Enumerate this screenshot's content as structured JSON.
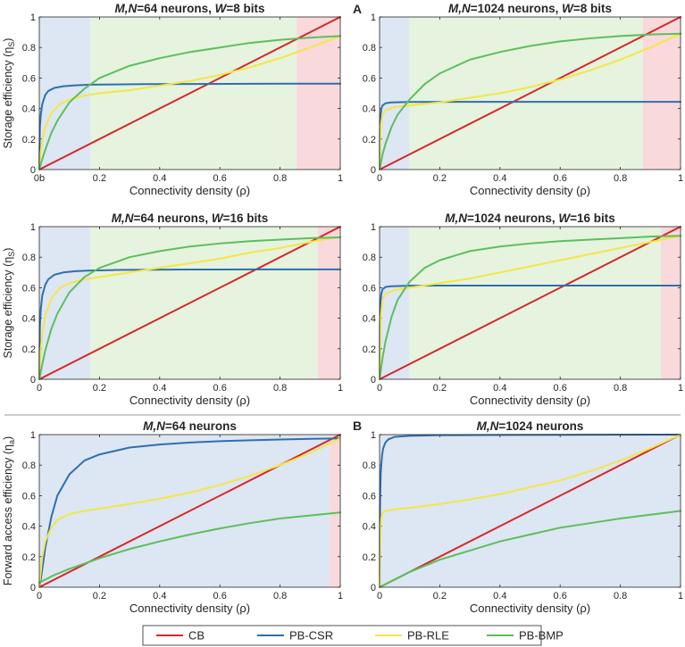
{
  "letters": {
    "A": "A",
    "B": "B"
  },
  "legend": [
    {
      "name": "CB",
      "color": "#d62728"
    },
    {
      "name": "PB-CSR",
      "color": "#2e6fb0"
    },
    {
      "name": "PB-RLE",
      "color": "#f5e642"
    },
    {
      "name": "PB-BMP",
      "color": "#5cbf5c"
    }
  ],
  "region_colors": {
    "blue": "#dde6f3",
    "green": "#e6f3de",
    "red": "#f9d9dc"
  },
  "chart_data": [
    {
      "type": "line",
      "title": {
        "pre": "M,N",
        "mid": "=64 neurons, ",
        "wvar": "W",
        "post": "=8 bits"
      },
      "xlabel": "Connectivity density (ρ)",
      "ylabel": {
        "text": "Storage efficiency (η",
        "sub": "S",
        "close": ")"
      },
      "xlim": [
        0,
        1
      ],
      "ylim": [
        0,
        1
      ],
      "xticks": [
        "0b",
        "0.2",
        "0.4",
        "0.6",
        "0.8",
        "1"
      ],
      "yticks": [
        "0",
        "0.2",
        "0.4",
        "0.6",
        "0.8",
        "1"
      ],
      "regions": [
        {
          "from": 0,
          "to": 0.17,
          "color": "blue"
        },
        {
          "from": 0.17,
          "to": 0.855,
          "color": "green"
        },
        {
          "from": 0.855,
          "to": 1,
          "color": "red"
        }
      ],
      "series": [
        {
          "name": "CB",
          "x": [
            0,
            1
          ],
          "values": [
            0,
            1
          ]
        },
        {
          "name": "PB-CSR",
          "x": [
            0,
            0.002,
            0.005,
            0.01,
            0.02,
            0.03,
            0.05,
            0.08,
            0.12,
            0.17,
            0.25,
            0.35,
            0.5,
            0.7,
            0.85,
            1
          ],
          "values": [
            0,
            0.28,
            0.36,
            0.43,
            0.49,
            0.515,
            0.535,
            0.546,
            0.552,
            0.556,
            0.558,
            0.56,
            0.561,
            0.562,
            0.563,
            0.563
          ]
        },
        {
          "name": "PB-RLE",
          "x": [
            0,
            0.005,
            0.01,
            0.02,
            0.04,
            0.07,
            0.1,
            0.15,
            0.2,
            0.3,
            0.4,
            0.5,
            0.6,
            0.7,
            0.8,
            0.9,
            1
          ],
          "values": [
            0,
            0.12,
            0.19,
            0.28,
            0.37,
            0.43,
            0.46,
            0.485,
            0.5,
            0.52,
            0.55,
            0.58,
            0.62,
            0.67,
            0.73,
            0.8,
            0.875
          ]
        },
        {
          "name": "PB-BMP",
          "x": [
            0,
            0.01,
            0.02,
            0.04,
            0.06,
            0.1,
            0.15,
            0.2,
            0.3,
            0.4,
            0.5,
            0.6,
            0.7,
            0.8,
            0.9,
            1
          ],
          "values": [
            0,
            0.07,
            0.13,
            0.24,
            0.32,
            0.44,
            0.53,
            0.6,
            0.68,
            0.73,
            0.77,
            0.8,
            0.83,
            0.85,
            0.865,
            0.875
          ]
        }
      ]
    },
    {
      "type": "line",
      "title": {
        "pre": "M,N",
        "mid": "=1024 neurons, ",
        "wvar": "W",
        "post": "=8 bits"
      },
      "xlabel": "Connectivity density (ρ)",
      "ylabel": null,
      "xlim": [
        0,
        1
      ],
      "ylim": [
        0,
        1
      ],
      "xticks": [
        "0",
        "0.2",
        "0.4",
        "0.6",
        "0.8",
        "1"
      ],
      "yticks": [
        "0",
        "0.2",
        "0.4",
        "0.6",
        "0.8",
        "1"
      ],
      "regions": [
        {
          "from": 0,
          "to": 0.1,
          "color": "blue"
        },
        {
          "from": 0.1,
          "to": 0.875,
          "color": "green"
        },
        {
          "from": 0.875,
          "to": 1,
          "color": "red"
        }
      ],
      "series": [
        {
          "name": "CB",
          "x": [
            0,
            1
          ],
          "values": [
            0,
            1
          ]
        },
        {
          "name": "PB-CSR",
          "x": [
            0,
            0.001,
            0.003,
            0.006,
            0.01,
            0.02,
            0.04,
            0.1,
            0.3,
            0.6,
            1
          ],
          "values": [
            0,
            0.25,
            0.35,
            0.4,
            0.42,
            0.435,
            0.44,
            0.443,
            0.444,
            0.444,
            0.444
          ]
        },
        {
          "name": "PB-RLE",
          "x": [
            0,
            0.002,
            0.005,
            0.01,
            0.02,
            0.05,
            0.1,
            0.2,
            0.3,
            0.4,
            0.5,
            0.6,
            0.7,
            0.8,
            0.9,
            1
          ],
          "values": [
            0,
            0.2,
            0.3,
            0.36,
            0.39,
            0.41,
            0.42,
            0.44,
            0.47,
            0.5,
            0.54,
            0.59,
            0.65,
            0.72,
            0.8,
            0.89
          ]
        },
        {
          "name": "PB-BMP",
          "x": [
            0,
            0.01,
            0.02,
            0.04,
            0.06,
            0.1,
            0.15,
            0.2,
            0.3,
            0.4,
            0.5,
            0.6,
            0.7,
            0.8,
            0.9,
            1
          ],
          "values": [
            0,
            0.1,
            0.17,
            0.28,
            0.36,
            0.46,
            0.56,
            0.63,
            0.72,
            0.77,
            0.81,
            0.84,
            0.86,
            0.875,
            0.885,
            0.89
          ]
        }
      ]
    },
    {
      "type": "line",
      "title": {
        "pre": "M,N",
        "mid": "=64 neurons, ",
        "wvar": "W",
        "post": "=16 bits"
      },
      "xlabel": "Connectivity density (ρ)",
      "ylabel": {
        "text": "Storage efficiency (η",
        "sub": "S",
        "close": ")"
      },
      "xlim": [
        0,
        1
      ],
      "ylim": [
        0,
        1
      ],
      "xticks": [
        "0",
        "0.2",
        "0.4",
        "0.6",
        "0.8",
        "1"
      ],
      "yticks": [
        "0",
        "0.2",
        "0.4",
        "0.6",
        "0.8",
        "1"
      ],
      "regions": [
        {
          "from": 0,
          "to": 0.17,
          "color": "blue"
        },
        {
          "from": 0.17,
          "to": 0.925,
          "color": "green"
        },
        {
          "from": 0.925,
          "to": 1,
          "color": "red"
        }
      ],
      "series": [
        {
          "name": "CB",
          "x": [
            0,
            1
          ],
          "values": [
            0,
            1
          ]
        },
        {
          "name": "PB-CSR",
          "x": [
            0,
            0.002,
            0.005,
            0.01,
            0.02,
            0.03,
            0.05,
            0.08,
            0.12,
            0.17,
            0.25,
            0.35,
            0.5,
            0.7,
            0.85,
            1
          ],
          "values": [
            0,
            0.35,
            0.46,
            0.55,
            0.62,
            0.655,
            0.685,
            0.7,
            0.708,
            0.713,
            0.716,
            0.718,
            0.719,
            0.72,
            0.72,
            0.72
          ]
        },
        {
          "name": "PB-RLE",
          "x": [
            0,
            0.005,
            0.01,
            0.02,
            0.04,
            0.07,
            0.1,
            0.15,
            0.2,
            0.3,
            0.4,
            0.5,
            0.6,
            0.7,
            0.8,
            0.9,
            1
          ],
          "values": [
            0,
            0.2,
            0.3,
            0.42,
            0.53,
            0.6,
            0.63,
            0.655,
            0.67,
            0.7,
            0.73,
            0.76,
            0.79,
            0.83,
            0.86,
            0.9,
            0.935
          ]
        },
        {
          "name": "PB-BMP",
          "x": [
            0,
            0.01,
            0.02,
            0.04,
            0.06,
            0.1,
            0.15,
            0.2,
            0.3,
            0.4,
            0.5,
            0.6,
            0.7,
            0.8,
            0.9,
            1
          ],
          "values": [
            0,
            0.1,
            0.19,
            0.33,
            0.43,
            0.57,
            0.67,
            0.73,
            0.8,
            0.84,
            0.87,
            0.89,
            0.905,
            0.915,
            0.925,
            0.93
          ]
        }
      ]
    },
    {
      "type": "line",
      "title": {
        "pre": "M,N",
        "mid": "=1024 neurons, ",
        "wvar": "W",
        "post": "=16 bits"
      },
      "xlabel": "Connectivity density (ρ)",
      "ylabel": null,
      "xlim": [
        0,
        1
      ],
      "ylim": [
        0,
        1
      ],
      "xticks": [
        "0",
        "0.2",
        "0.4",
        "0.6",
        "0.8",
        "1"
      ],
      "yticks": [
        "0",
        "0.2",
        "0.4",
        "0.6",
        "0.8",
        "1"
      ],
      "regions": [
        {
          "from": 0,
          "to": 0.1,
          "color": "blue"
        },
        {
          "from": 0.1,
          "to": 0.935,
          "color": "green"
        },
        {
          "from": 0.935,
          "to": 1,
          "color": "red"
        }
      ],
      "series": [
        {
          "name": "CB",
          "x": [
            0,
            1
          ],
          "values": [
            0,
            1
          ]
        },
        {
          "name": "PB-CSR",
          "x": [
            0,
            0.001,
            0.003,
            0.006,
            0.01,
            0.02,
            0.04,
            0.1,
            0.3,
            0.6,
            1
          ],
          "values": [
            0,
            0.35,
            0.5,
            0.56,
            0.59,
            0.605,
            0.61,
            0.613,
            0.614,
            0.614,
            0.614
          ]
        },
        {
          "name": "PB-RLE",
          "x": [
            0,
            0.002,
            0.005,
            0.01,
            0.02,
            0.05,
            0.1,
            0.2,
            0.3,
            0.4,
            0.5,
            0.6,
            0.7,
            0.8,
            0.9,
            1
          ],
          "values": [
            0,
            0.3,
            0.43,
            0.52,
            0.56,
            0.585,
            0.6,
            0.63,
            0.66,
            0.7,
            0.74,
            0.78,
            0.82,
            0.86,
            0.9,
            0.94
          ]
        },
        {
          "name": "PB-BMP",
          "x": [
            0,
            0.01,
            0.02,
            0.04,
            0.06,
            0.1,
            0.15,
            0.2,
            0.3,
            0.4,
            0.5,
            0.6,
            0.7,
            0.8,
            0.9,
            1
          ],
          "values": [
            0,
            0.14,
            0.25,
            0.41,
            0.52,
            0.64,
            0.73,
            0.78,
            0.84,
            0.87,
            0.89,
            0.905,
            0.915,
            0.925,
            0.935,
            0.94
          ]
        }
      ]
    },
    {
      "type": "line",
      "title": {
        "pre": "M,N",
        "mid": "=64 neurons",
        "wvar": "",
        "post": ""
      },
      "xlabel": "Connectivity density (ρ)",
      "ylabel": {
        "text": "Forward access efficiency (η",
        "sub": "a",
        "close": ")"
      },
      "xlim": [
        0,
        1
      ],
      "ylim": [
        0,
        1
      ],
      "xticks": [
        "0",
        "0.2",
        "0.4",
        "0.6",
        "0.8",
        "1"
      ],
      "yticks": [
        "0",
        "0.2",
        "0.4",
        "0.6",
        "0.8",
        "1"
      ],
      "regions": [
        {
          "from": 0,
          "to": 0.965,
          "color": "blue"
        },
        {
          "from": 0.965,
          "to": 1,
          "color": "red"
        }
      ],
      "series": [
        {
          "name": "CB",
          "x": [
            0,
            1
          ],
          "values": [
            0,
            1
          ]
        },
        {
          "name": "PB-CSR",
          "x": [
            0,
            0.005,
            0.01,
            0.02,
            0.04,
            0.06,
            0.1,
            0.15,
            0.2,
            0.3,
            0.4,
            0.5,
            0.6,
            0.7,
            0.8,
            0.9,
            1
          ],
          "values": [
            0,
            0.05,
            0.12,
            0.26,
            0.46,
            0.6,
            0.74,
            0.83,
            0.87,
            0.915,
            0.935,
            0.948,
            0.957,
            0.963,
            0.968,
            0.972,
            0.975
          ]
        },
        {
          "name": "PB-RLE",
          "x": [
            0,
            0.005,
            0.01,
            0.02,
            0.04,
            0.06,
            0.1,
            0.15,
            0.2,
            0.3,
            0.4,
            0.5,
            0.6,
            0.7,
            0.8,
            0.9,
            1
          ],
          "values": [
            0,
            0.1,
            0.2,
            0.3,
            0.39,
            0.44,
            0.48,
            0.5,
            0.515,
            0.545,
            0.58,
            0.62,
            0.67,
            0.73,
            0.8,
            0.88,
            0.975
          ]
        },
        {
          "name": "PB-BMP",
          "x": [
            0,
            0.05,
            0.1,
            0.2,
            0.3,
            0.4,
            0.5,
            0.6,
            0.7,
            0.8,
            0.9,
            1
          ],
          "values": [
            0.03,
            0.08,
            0.12,
            0.19,
            0.25,
            0.3,
            0.345,
            0.385,
            0.42,
            0.45,
            0.47,
            0.49
          ]
        }
      ]
    },
    {
      "type": "line",
      "title": {
        "pre": "M,N",
        "mid": "=1024 neurons",
        "wvar": "",
        "post": ""
      },
      "xlabel": "Connectivity density (ρ)",
      "ylabel": null,
      "xlim": [
        0,
        1
      ],
      "ylim": [
        0,
        1
      ],
      "xticks": [
        "0",
        "0.2",
        "0.4",
        "0.6",
        "0.8",
        "1"
      ],
      "yticks": [
        "0",
        "0.2",
        "0.4",
        "0.6",
        "0.8",
        "1"
      ],
      "regions": [
        {
          "from": 0,
          "to": 1,
          "color": "blue"
        }
      ],
      "series": [
        {
          "name": "CB",
          "x": [
            0,
            1
          ],
          "values": [
            0,
            1
          ]
        },
        {
          "name": "PB-CSR",
          "x": [
            0,
            0.001,
            0.002,
            0.004,
            0.008,
            0.012,
            0.02,
            0.03,
            0.05,
            0.1,
            0.2,
            0.4,
            0.7,
            1
          ],
          "values": [
            0,
            0.4,
            0.6,
            0.75,
            0.86,
            0.91,
            0.95,
            0.97,
            0.985,
            0.992,
            0.996,
            0.998,
            0.999,
            1.0
          ]
        },
        {
          "name": "PB-RLE",
          "x": [
            0,
            0.001,
            0.003,
            0.006,
            0.01,
            0.02,
            0.05,
            0.1,
            0.2,
            0.3,
            0.4,
            0.5,
            0.6,
            0.7,
            0.8,
            0.9,
            1
          ],
          "values": [
            0,
            0.2,
            0.38,
            0.46,
            0.49,
            0.5,
            0.51,
            0.52,
            0.545,
            0.575,
            0.61,
            0.655,
            0.7,
            0.76,
            0.83,
            0.91,
            1.0
          ]
        },
        {
          "name": "PB-BMP",
          "x": [
            0,
            0.05,
            0.1,
            0.2,
            0.3,
            0.4,
            0.5,
            0.6,
            0.7,
            0.8,
            0.9,
            1
          ],
          "values": [
            0,
            0.05,
            0.1,
            0.18,
            0.24,
            0.3,
            0.345,
            0.39,
            0.42,
            0.45,
            0.475,
            0.5
          ]
        }
      ]
    }
  ]
}
